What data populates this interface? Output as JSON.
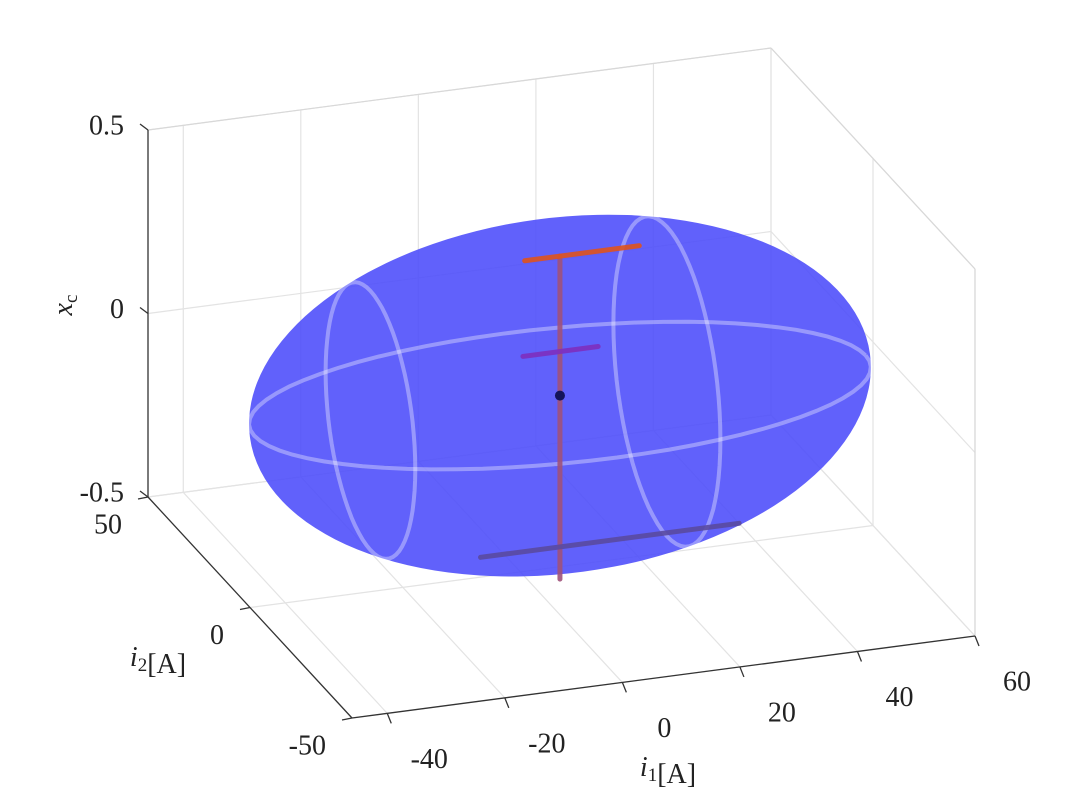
{
  "chart_data": {
    "type": "surface3d",
    "xlabel": {
      "base": "i",
      "sub": "1",
      "unit": "[A]"
    },
    "ylabel": {
      "base": "i",
      "sub": "2",
      "unit": "[A]"
    },
    "zlabel": {
      "base": "x",
      "sub": "c"
    },
    "xlim": [
      -46,
      60
    ],
    "xticks": [
      -40,
      -20,
      0,
      20,
      40,
      60
    ],
    "ylim": [
      -50,
      50
    ],
    "yticks": [
      -50,
      0,
      50
    ],
    "zlim": [
      -0.5,
      0.5
    ],
    "zticks": [
      -0.5,
      0,
      0.5
    ],
    "grid": true,
    "ellipsoid": {
      "center": [
        5,
        -5,
        0
      ],
      "radii": [
        52,
        28,
        0.45
      ],
      "color": "#4b4bfa"
    },
    "series": [
      {
        "color": "#a0527a",
        "x": [
          5,
          5
        ],
        "y": [
          -5,
          -5
        ],
        "z": [
          -0.5,
          0.38
        ]
      },
      {
        "color": "#5a4aa0",
        "x": [
          -4,
          40
        ],
        "y": [
          8,
          8
        ],
        "z": [
          -0.5,
          -0.5
        ]
      },
      {
        "color": "#7e2fbe",
        "x": [
          -1.3,
          11.5
        ],
        "y": [
          -5,
          -5
        ],
        "z": [
          0.12,
          0.12
        ]
      },
      {
        "color": "#e0531c",
        "x": [
          -1,
          18.5
        ],
        "y": [
          -5,
          -5
        ],
        "z": [
          0.38,
          0.38
        ]
      },
      {
        "color": "#14145a",
        "x": [
          5
        ],
        "y": [
          -5
        ],
        "z": [
          0
        ],
        "marker": true
      }
    ]
  }
}
